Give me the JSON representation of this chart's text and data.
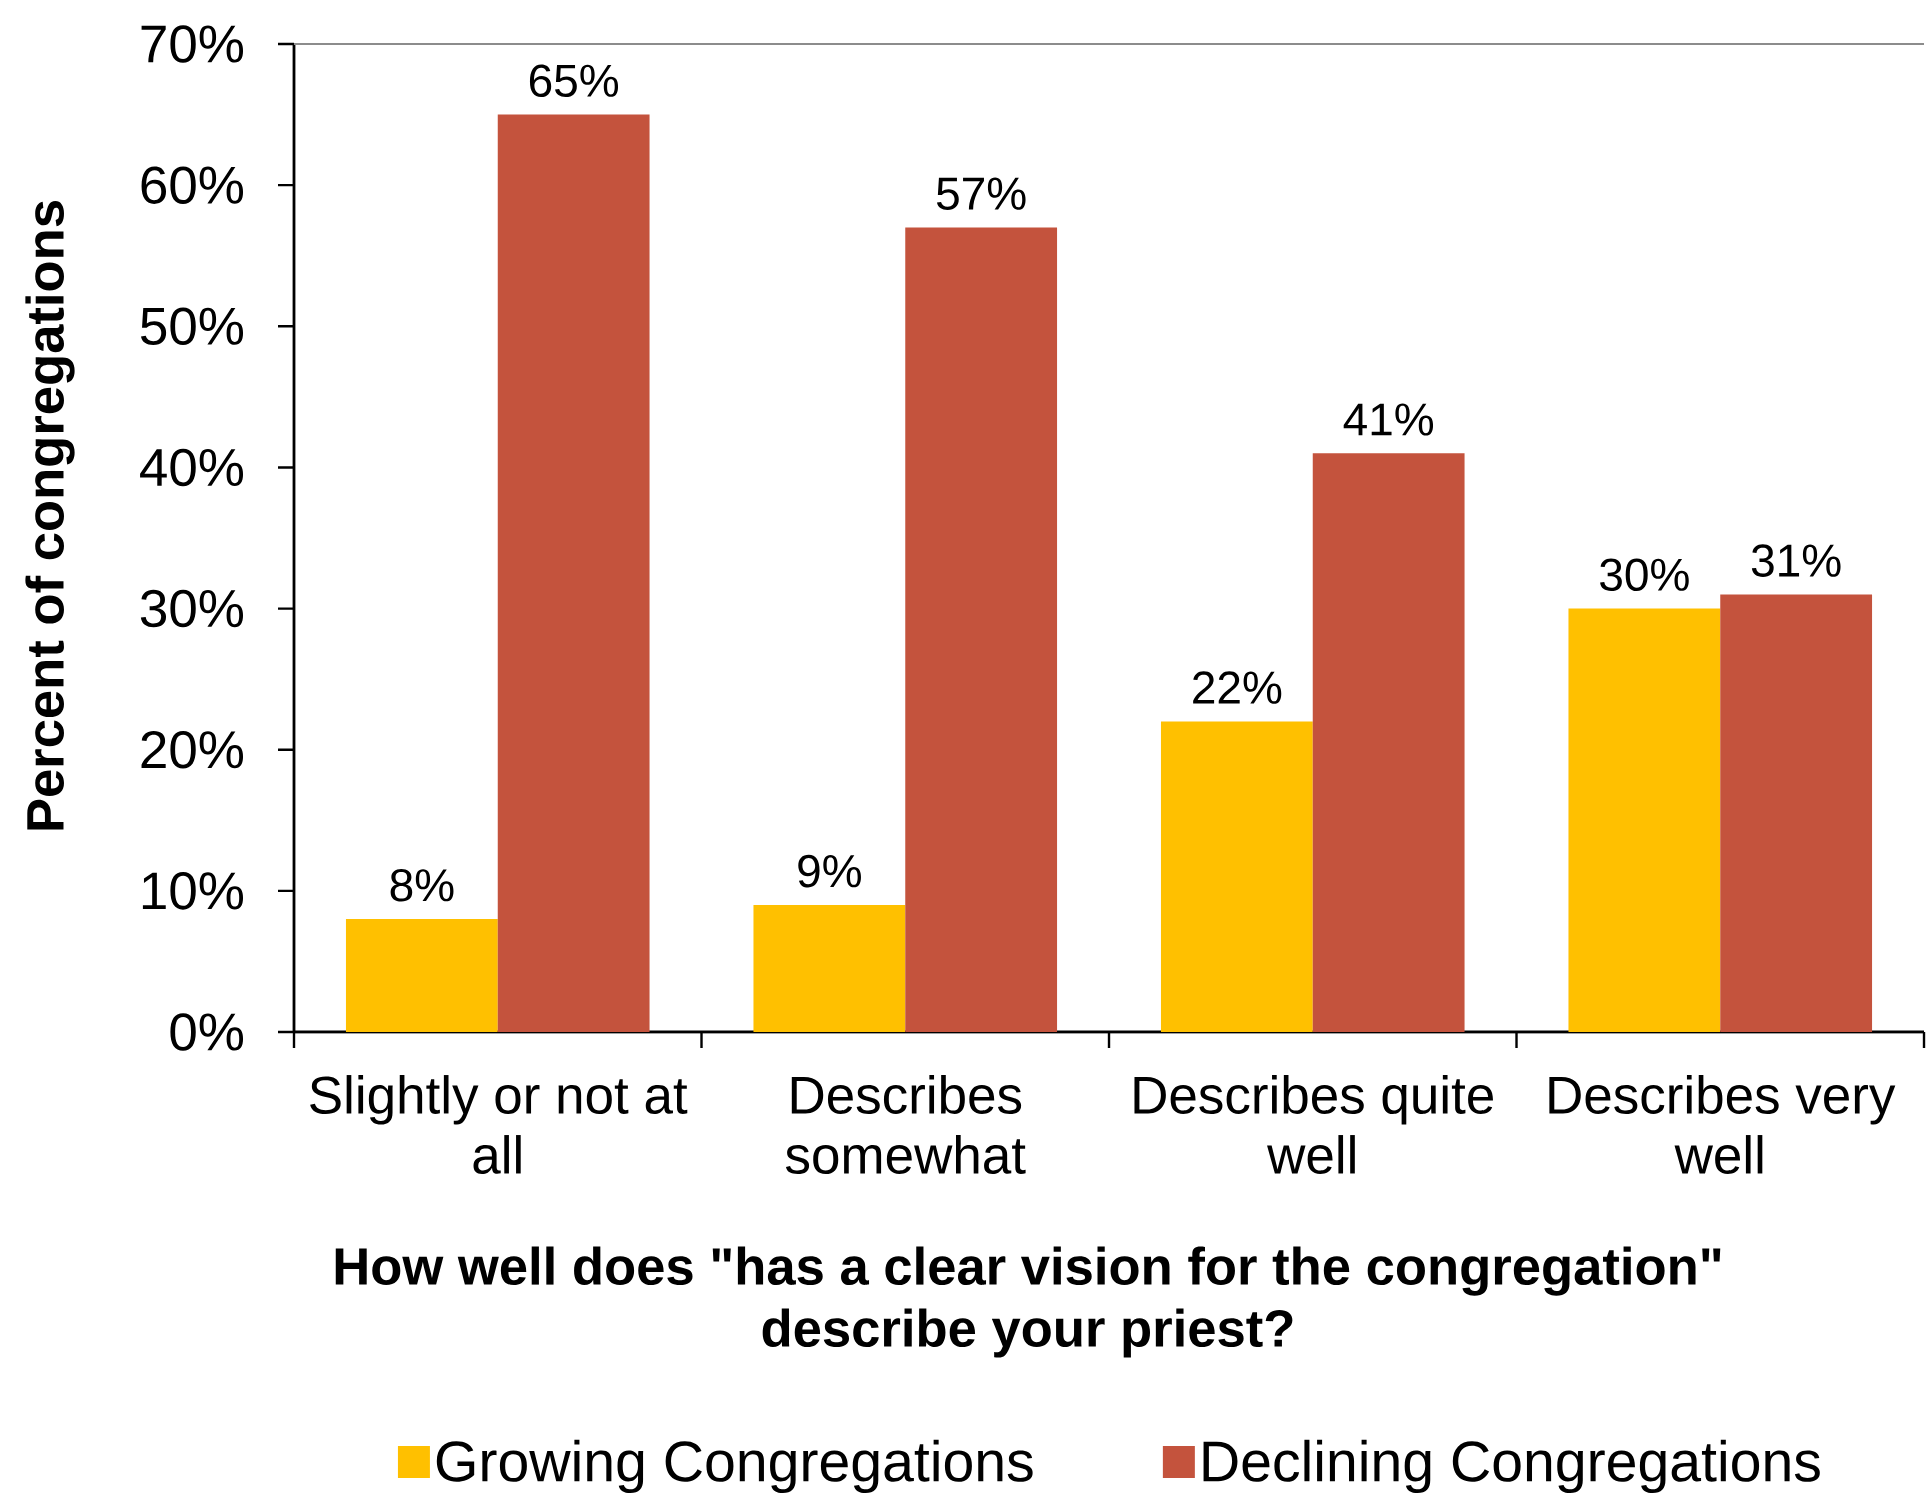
{
  "chart_data": {
    "type": "bar",
    "xlabel": "How well does \"has a clear vision for the congregation\" describe your priest?",
    "ylabel": "Percent of congregations",
    "categories": [
      "Slightly or not at all",
      "Describes somewhat",
      "Describes quite well",
      "Describes very well"
    ],
    "series": [
      {
        "name": "Growing Congregations",
        "color": "#ffc000",
        "values": [
          8,
          9,
          22,
          30
        ],
        "value_labels": [
          "8%",
          "9%",
          "22%",
          "30%"
        ]
      },
      {
        "name": "Declining Congregations",
        "color": "#c4533d",
        "values": [
          65,
          57,
          41,
          31
        ],
        "value_labels": [
          "65%",
          "57%",
          "41%",
          "31%"
        ]
      }
    ],
    "ylim": [
      0,
      70
    ],
    "yticks": [
      {
        "value": 0,
        "label": "0%"
      },
      {
        "value": 10,
        "label": "10%"
      },
      {
        "value": 20,
        "label": "20%"
      },
      {
        "value": 30,
        "label": "30%"
      },
      {
        "value": 40,
        "label": "40%"
      },
      {
        "value": 50,
        "label": "50%"
      },
      {
        "value": 60,
        "label": "60%"
      },
      {
        "value": 70,
        "label": "70%"
      }
    ],
    "grid": false,
    "legend": "bottom"
  }
}
